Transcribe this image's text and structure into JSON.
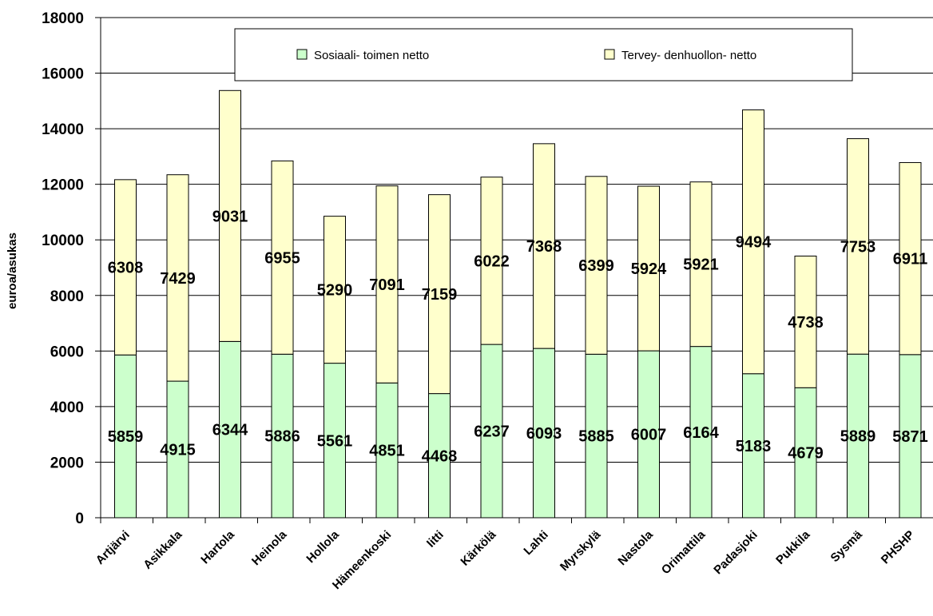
{
  "chart_data": {
    "type": "bar",
    "stacked": true,
    "categories": [
      "Artjärvi",
      "Asikkala",
      "Hartola",
      "Heinola",
      "Hollola",
      "Hämeenkoski",
      "Iitti",
      "Kärkölä",
      "Lahti",
      "Myrskylä",
      "Nastola",
      "Orimattila",
      "Padasjoki",
      "Pukkila",
      "Sysmä",
      "PHSHP"
    ],
    "series": [
      {
        "name": "Sosiaali- toimen netto",
        "color": "#ccffcc",
        "values": [
          5859,
          4915,
          6344,
          5886,
          5561,
          4851,
          4468,
          6237,
          6093,
          5885,
          6007,
          6164,
          5183,
          4679,
          5889,
          5871
        ]
      },
      {
        "name": "Tervey- denhuollon- netto",
        "color": "#ffffcc",
        "values": [
          6308,
          7429,
          9031,
          6955,
          5290,
          7091,
          7159,
          6022,
          7368,
          6399,
          5924,
          5921,
          9494,
          4738,
          7753,
          6911
        ]
      }
    ],
    "ylabel": "euroa/asukas",
    "xlabel": "",
    "ylim": [
      0,
      18000
    ],
    "yticks": [
      0,
      2000,
      4000,
      6000,
      8000,
      10000,
      12000,
      14000,
      16000,
      18000
    ],
    "grid": true,
    "legend": "top"
  }
}
